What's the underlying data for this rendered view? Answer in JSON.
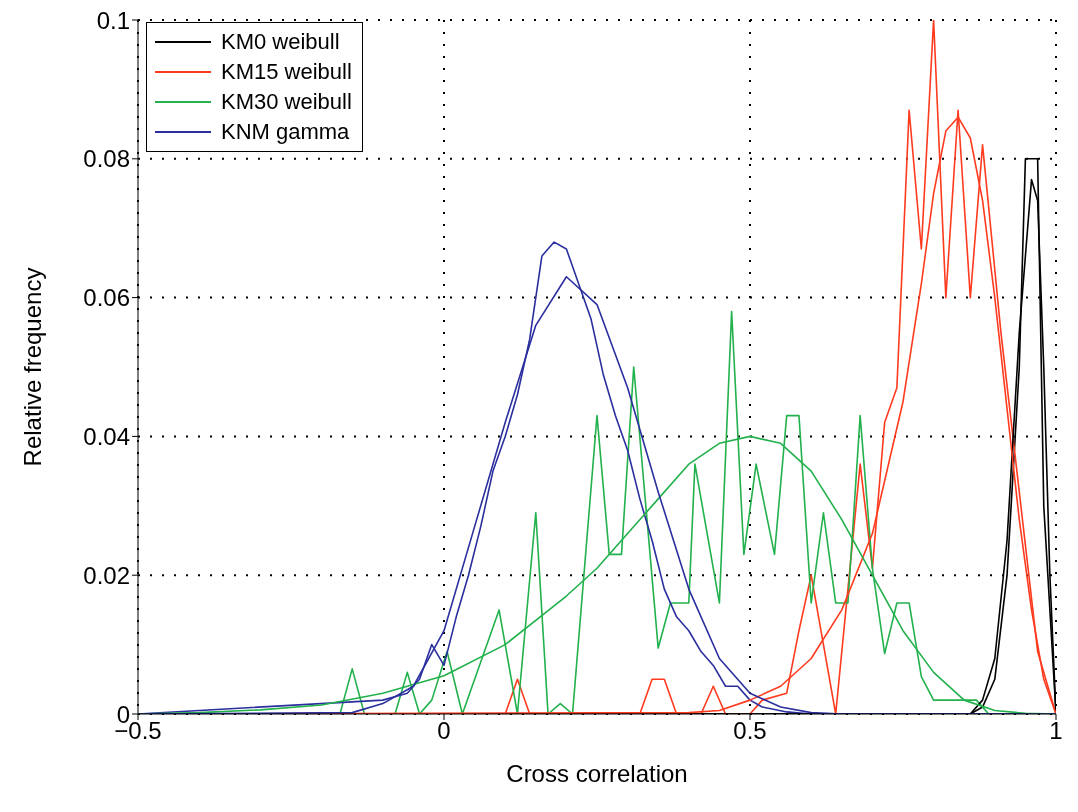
{
  "chart_data": {
    "type": "line",
    "xlabel": "Cross correlation",
    "ylabel": "Relative frequency",
    "xlim": [
      -0.5,
      1
    ],
    "xticks": [
      -0.5,
      0,
      0.5,
      1
    ],
    "ylim": [
      0,
      0.1
    ],
    "yticks": [
      0,
      0.02,
      0.04,
      0.06,
      0.08,
      0.1
    ],
    "grid": true,
    "legend": "top left",
    "series": [
      {
        "name": "KM0 weibull",
        "color": "#000000",
        "x": [
          -0.5,
          0.86,
          0.88,
          0.9,
          0.92,
          0.94,
          0.95,
          0.97,
          0.98,
          1
        ],
        "values": [
          0,
          0,
          0.001,
          0.005,
          0.02,
          0.05,
          0.08,
          0.08,
          0.03,
          0
        ]
      },
      {
        "name": "KM15 weibull",
        "color": "#ff3b1f",
        "x": [
          -0.5,
          0.1,
          0.12,
          0.14,
          0.32,
          0.34,
          0.36,
          0.38,
          0.42,
          0.44,
          0.46,
          0.5,
          0.52,
          0.56,
          0.58,
          0.6,
          0.62,
          0.64,
          0.68,
          0.7,
          0.72,
          0.74,
          0.76,
          0.78,
          0.8,
          0.82,
          0.84,
          0.86,
          0.88,
          0.91,
          0.94,
          0.97,
          1
        ],
        "values": [
          0,
          0,
          0.005,
          0,
          0,
          0.005,
          0.005,
          0,
          0,
          0.004,
          0,
          0,
          0.002,
          0.003,
          0.012,
          0.02,
          0.01,
          0,
          0.036,
          0.021,
          0.042,
          0.047,
          0.087,
          0.067,
          0.1,
          0.06,
          0.087,
          0.06,
          0.082,
          0.055,
          0.032,
          0.009,
          0
        ]
      },
      {
        "name": "KM30 weibull",
        "color": "#22b14c",
        "x": [
          -0.5,
          -0.17,
          -0.15,
          -0.13,
          -0.08,
          -0.06,
          -0.04,
          -0.02,
          0.005,
          0.03,
          0.09,
          0.12,
          0.15,
          0.17,
          0.19,
          0.21,
          0.25,
          0.27,
          0.29,
          0.31,
          0.35,
          0.37,
          0.4,
          0.41,
          0.45,
          0.47,
          0.49,
          0.51,
          0.54,
          0.56,
          0.58,
          0.6,
          0.62,
          0.64,
          0.66,
          0.68,
          0.7,
          0.72,
          0.74,
          0.76,
          0.78,
          0.8,
          0.85,
          0.87,
          0.89,
          1
        ],
        "values": [
          0,
          0,
          0.0065,
          0,
          0,
          0.006,
          0,
          0.002,
          0.009,
          0,
          0.015,
          0,
          0.029,
          0,
          0.0015,
          0,
          0.043,
          0.023,
          0.023,
          0.05,
          0.0095,
          0.016,
          0.016,
          0.036,
          0.016,
          0.058,
          0.023,
          0.036,
          0.023,
          0.043,
          0.043,
          0.016,
          0.029,
          0.016,
          0.016,
          0.043,
          0.021,
          0.0087,
          0.016,
          0.016,
          0.0054,
          0.002,
          0.002,
          0.002,
          0,
          0
        ]
      },
      {
        "name": "KNM gamma",
        "color": "#2b2f9e",
        "x": [
          -0.5,
          -0.1,
          -0.06,
          -0.04,
          -0.02,
          0,
          0.02,
          0.04,
          0.06,
          0.08,
          0.1,
          0.12,
          0.14,
          0.16,
          0.18,
          0.2,
          0.22,
          0.24,
          0.26,
          0.28,
          0.3,
          0.32,
          0.34,
          0.36,
          0.38,
          0.4,
          0.42,
          0.44,
          0.46,
          0.48,
          0.5,
          0.52,
          0.56,
          0.6,
          1
        ],
        "values": [
          0,
          0.002,
          0.003,
          0.005,
          0.01,
          0.007,
          0.014,
          0.02,
          0.027,
          0.035,
          0.04,
          0.046,
          0.054,
          0.066,
          0.068,
          0.067,
          0.062,
          0.057,
          0.049,
          0.043,
          0.038,
          0.031,
          0.025,
          0.018,
          0.014,
          0.012,
          0.009,
          0.007,
          0.004,
          0.004,
          0.002,
          0.001,
          0.0003,
          0,
          0
        ]
      },
      {
        "color": "#000000",
        "x": [
          -0.5,
          0.86,
          0.88,
          0.9,
          0.92,
          0.94,
          0.96,
          0.97,
          0.98,
          0.99,
          1
        ],
        "values": [
          0,
          0,
          0.002,
          0.008,
          0.025,
          0.055,
          0.077,
          0.074,
          0.05,
          0.02,
          0
        ]
      },
      {
        "color": "#ff3b1f",
        "x": [
          -0.5,
          0.4,
          0.45,
          0.5,
          0.55,
          0.6,
          0.65,
          0.7,
          0.75,
          0.78,
          0.8,
          0.82,
          0.84,
          0.86,
          0.88,
          0.9,
          0.92,
          0.94,
          0.96,
          0.98,
          1
        ],
        "values": [
          0,
          0.0002,
          0.0005,
          0.002,
          0.004,
          0.008,
          0.015,
          0.026,
          0.045,
          0.062,
          0.075,
          0.084,
          0.086,
          0.083,
          0.074,
          0.06,
          0.044,
          0.028,
          0.015,
          0.005,
          0
        ]
      },
      {
        "color": "#22b14c",
        "x": [
          -0.5,
          -0.4,
          -0.3,
          -0.2,
          -0.1,
          0,
          0.1,
          0.2,
          0.25,
          0.3,
          0.35,
          0.4,
          0.45,
          0.5,
          0.55,
          0.6,
          0.65,
          0.7,
          0.75,
          0.8,
          0.85,
          0.9,
          0.95,
          1
        ],
        "values": [
          0,
          0.0002,
          0.0006,
          0.0013,
          0.003,
          0.0055,
          0.01,
          0.017,
          0.021,
          0.026,
          0.031,
          0.036,
          0.039,
          0.04,
          0.039,
          0.035,
          0.028,
          0.02,
          0.012,
          0.006,
          0.002,
          0.0005,
          0.0001,
          0
        ]
      },
      {
        "color": "#2b2f9e",
        "x": [
          -0.5,
          -0.15,
          -0.1,
          -0.05,
          0,
          0.05,
          0.1,
          0.15,
          0.2,
          0.25,
          0.3,
          0.35,
          0.4,
          0.45,
          0.5,
          0.55,
          0.6,
          0.65,
          1
        ],
        "values": [
          0,
          0.0002,
          0.0015,
          0.004,
          0.012,
          0.027,
          0.042,
          0.056,
          0.063,
          0.059,
          0.047,
          0.032,
          0.018,
          0.008,
          0.003,
          0.001,
          0.0002,
          0,
          0
        ]
      }
    ]
  }
}
